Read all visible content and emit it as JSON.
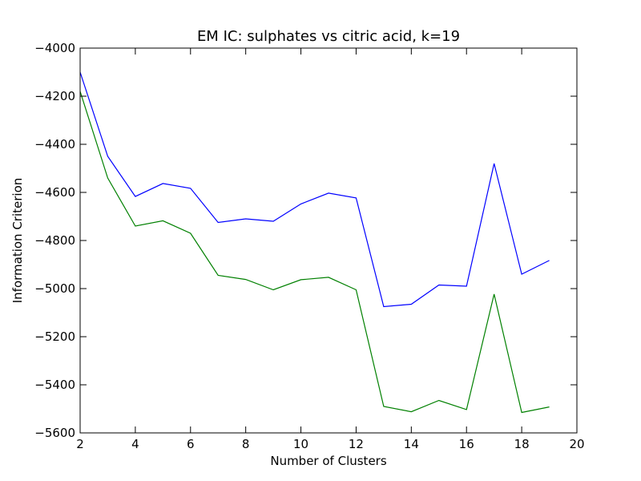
{
  "chart_data": {
    "type": "line",
    "title": "EM IC: sulphates vs citric acid, k=19",
    "xlabel": "Number of Clusters",
    "ylabel": "Information Criterion",
    "xlim": [
      2,
      20
    ],
    "ylim": [
      -5600,
      -4000
    ],
    "xticks": [
      "2",
      "4",
      "6",
      "8",
      "10",
      "12",
      "14",
      "16",
      "18",
      "20"
    ],
    "yticks": [
      "−4000",
      "−4200",
      "−4400",
      "−4600",
      "−4800",
      "−5000",
      "−5200",
      "−5400",
      "−5600"
    ],
    "grid": false,
    "x": [
      2,
      3,
      4,
      5,
      6,
      7,
      8,
      9,
      10,
      11,
      12,
      13,
      14,
      15,
      16,
      17,
      18,
      19
    ],
    "series": [
      {
        "color": "#0000ff",
        "values": [
          -4100,
          -4450,
          -4617,
          -4563,
          -4583,
          -4725,
          -4710,
          -4720,
          -4648,
          -4603,
          -4623,
          -5075,
          -5065,
          -4985,
          -4990,
          -4480,
          -4940,
          -4883
        ]
      },
      {
        "color": "#008000",
        "values": [
          -4180,
          -4540,
          -4740,
          -4718,
          -4770,
          -4945,
          -4962,
          -5005,
          -4963,
          -4953,
          -5005,
          -5490,
          -5512,
          -5465,
          -5503,
          -5023,
          -5515,
          -5492
        ]
      }
    ]
  }
}
